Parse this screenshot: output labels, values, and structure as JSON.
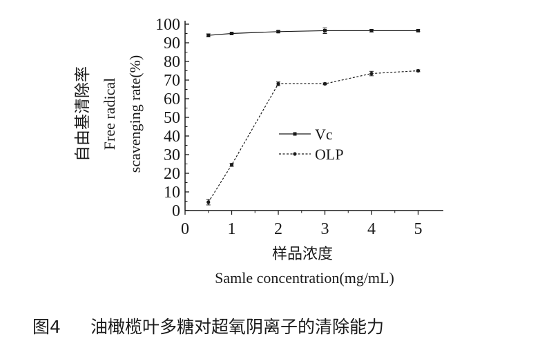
{
  "chart_data": {
    "type": "line",
    "x": [
      0.5,
      1,
      2,
      3,
      4,
      5
    ],
    "xlim": [
      0,
      5.5
    ],
    "ylim": [
      0,
      100
    ],
    "xticks": [
      "0",
      "1",
      "2",
      "3",
      "4",
      "5"
    ],
    "yticks": [
      "0",
      "10",
      "20",
      "30",
      "40",
      "50",
      "60",
      "70",
      "80",
      "90",
      "100"
    ],
    "xlabel_cn": "样品浓度",
    "xlabel_en": "Samle concentration(mg/mL)",
    "ylabel_cn": "自由基清除率",
    "ylabel_en_1": "Free radical",
    "ylabel_en_2": "scavenging rate(%)",
    "legend_position": "center",
    "grid": false,
    "series": [
      {
        "name": "Vc",
        "values": [
          94,
          95,
          96,
          96.5,
          96.5,
          96.5
        ],
        "errors": [
          0.8,
          0.6,
          0.5,
          1.5,
          0.7,
          0.5
        ],
        "line_style": "solid",
        "marker": "square",
        "color": "#1a1a1a"
      },
      {
        "name": "OLP",
        "values": [
          4.5,
          24.5,
          68,
          68,
          73.5,
          75
        ],
        "errors": [
          1.5,
          0.8,
          1.0,
          0.5,
          1.2,
          0.5
        ],
        "line_style": "dashed",
        "marker": "circle",
        "color": "#1a1a1a"
      }
    ]
  },
  "caption": {
    "figure_label": "图4",
    "text": "油橄榄叶多糖对超氧阴离子的清除能力"
  }
}
